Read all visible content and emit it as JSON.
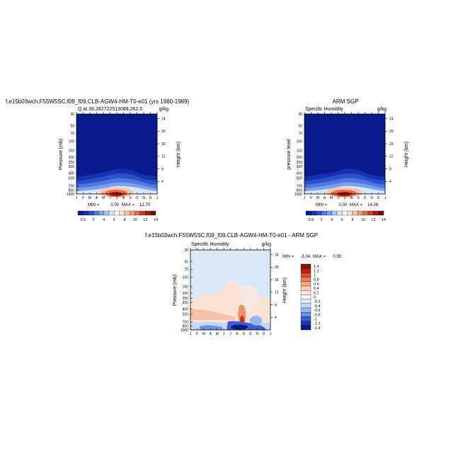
{
  "titles": {
    "model": "f.e15b03wch.F55W5SC.f09_f09.CLB-AGW4-HM-T0-e01 (yrs 1980-1989)",
    "obs": "ARM SGP",
    "diff": "f.e15b03wch.F55W5SC.f09_f09.CLB-AGW4-HM-T0-e01 - ARM SGP"
  },
  "colors": {
    "dark_blue": "#0a1a8c",
    "blue_scale": [
      "#0a1a8c",
      "#1530b0",
      "#2a50cc",
      "#4f78e0",
      "#7aa0ee",
      "#a7c4f6",
      "#d6e6fb",
      "#ffffff"
    ],
    "red_scale": [
      "#fde2d4",
      "#fbc2a6",
      "#f49a74",
      "#e8684a",
      "#cf3a25",
      "#a81812",
      "#7a0a0a"
    ],
    "diff_scale": [
      "#0a1a8c",
      "#1a35b8",
      "#3a5ed6",
      "#6b8ee8",
      "#9ab6f2",
      "#c5d8f8",
      "#e3ecfb",
      "#ffffff",
      "#fde6da",
      "#fbcdb6",
      "#f6a88a",
      "#ec7c5c",
      "#d94a34",
      "#b42418",
      "#8a0c0c"
    ]
  },
  "chart_data": [
    {
      "type": "heatmap",
      "panel": "model",
      "subtitle": "Q at 36.282722513089,262.5",
      "units": "g/kg",
      "ylabel": "Pressure (mb)",
      "right_label": "Height (km)",
      "x_ticks": [
        "J",
        "F",
        "M",
        "A",
        "M",
        "J",
        "J",
        "A",
        "S",
        "O",
        "N",
        "D",
        "J"
      ],
      "y_ticks": [
        "30",
        "50",
        "70",
        "100",
        "150",
        "200",
        "250",
        "300",
        "400",
        "500",
        "700",
        "850",
        "1000"
      ],
      "right_ticks": [
        "24",
        "20",
        "16",
        "12",
        "8",
        "4"
      ],
      "stats": {
        "min_label": "MIN =",
        "min": "0.00",
        "max_label": "MAX =",
        "max": "12.70"
      },
      "colorbar_ticks": [
        "0.5",
        "2",
        "4",
        "6",
        "8",
        "10",
        "12",
        "14"
      ]
    },
    {
      "type": "heatmap",
      "panel": "obs",
      "subtitle": "Specific Humidity",
      "units": "g/kg",
      "ylabel": "pressure level",
      "right_label": "Height (km)",
      "x_ticks": [
        "J",
        "F",
        "M",
        "A",
        "M",
        "J",
        "J",
        "A",
        "S",
        "O",
        "N",
        "D",
        "J"
      ],
      "y_ticks": [
        "30",
        "50",
        "70",
        "100",
        "150",
        "200",
        "250",
        "300",
        "400",
        "500",
        "700",
        "850",
        "1000"
      ],
      "right_ticks": [
        "24",
        "20",
        "16",
        "12",
        "8",
        "4"
      ],
      "stats": {
        "min_label": "MIN =",
        "min": "0.00",
        "max_label": "MAX =",
        "max": "14.08"
      },
      "colorbar_ticks": [
        "0.5",
        "2",
        "4",
        "6",
        "8",
        "10",
        "12",
        "14"
      ]
    },
    {
      "type": "heatmap",
      "panel": "difference",
      "subtitle": "Specific Humidity",
      "units": "g/kg",
      "ylabel": "Pressure (mb)",
      "right_label": "Height (km)",
      "x_ticks": [
        "J",
        "F",
        "M",
        "A",
        "M",
        "J",
        "J",
        "A",
        "S",
        "O",
        "N",
        "D",
        "J"
      ],
      "y_ticks": [
        "30",
        "50",
        "70",
        "100",
        "150",
        "200",
        "250",
        "300",
        "400",
        "500",
        "700",
        "850",
        "1000"
      ],
      "right_ticks": [
        "24",
        "20",
        "16",
        "12",
        "8",
        "4"
      ],
      "stats": {
        "min_label": "MIN =",
        "min": "-3.04",
        "max_label": "MAX =",
        "max": "0.95"
      },
      "colorbar_ticks": [
        "1.4",
        "1.2",
        "1",
        "0.8",
        "0.6",
        "0.4",
        "0.2",
        "0",
        "-0.2",
        "-0.4",
        "-0.6",
        "-0.8",
        "-1",
        "-1.2",
        "-1.4"
      ]
    }
  ]
}
